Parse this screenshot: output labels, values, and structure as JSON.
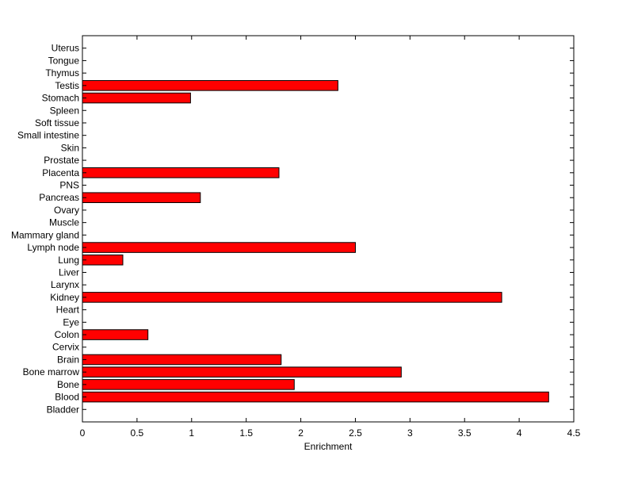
{
  "chart_data": {
    "type": "bar",
    "orientation": "horizontal",
    "categories": [
      "Bladder",
      "Blood",
      "Bone",
      "Bone marrow",
      "Brain",
      "Cervix",
      "Colon",
      "Eye",
      "Heart",
      "Kidney",
      "Larynx",
      "Liver",
      "Lung",
      "Lymph node",
      "Mammary gland",
      "Muscle",
      "Ovary",
      "Pancreas",
      "PNS",
      "Placenta",
      "Prostate",
      "Skin",
      "Small intestine",
      "Soft tissue",
      "Spleen",
      "Stomach",
      "Testis",
      "Thymus",
      "Tongue",
      "Uterus"
    ],
    "values": [
      0,
      4.27,
      1.94,
      2.92,
      1.82,
      0,
      0.6,
      0,
      0,
      3.84,
      0,
      0,
      0.37,
      2.5,
      0,
      0,
      0,
      1.08,
      0,
      1.8,
      0,
      0,
      0,
      0,
      0,
      0.99,
      2.34,
      0,
      0,
      0
    ],
    "xlabel": "Enrichment",
    "xlim": [
      0,
      4.5
    ],
    "xticks": [
      0,
      0.5,
      1,
      1.5,
      2,
      2.5,
      3,
      3.5,
      4,
      4.5
    ],
    "xtick_labels": [
      "0",
      "0.5",
      "1",
      "1.5",
      "2",
      "2.5",
      "3",
      "3.5",
      "4",
      "4.5"
    ],
    "bar_color": "#ff0000",
    "bar_edge_color": "#000000",
    "grid": false,
    "legend": "none"
  }
}
